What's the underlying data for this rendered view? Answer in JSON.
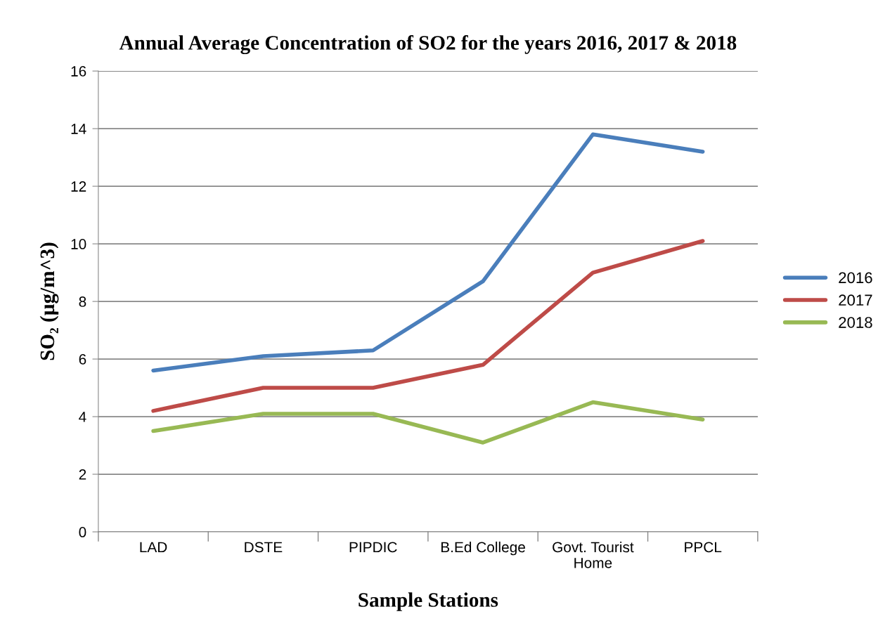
{
  "chart_data": {
    "type": "line",
    "title": "Annual Average Concentration of SO2 for the years 2016, 2017 & 2018",
    "xlabel": "Sample Stations",
    "ylabel": "SO₂ (µg/m^3)",
    "categories": [
      "LAD",
      "DSTE",
      "PIPDIC",
      "B.Ed College",
      "Govt. Tourist\nHome",
      "PPCL"
    ],
    "series": [
      {
        "name": "2016",
        "color": "#4a7ebb",
        "values": [
          5.6,
          6.1,
          6.3,
          8.7,
          13.8,
          13.2
        ]
      },
      {
        "name": "2017",
        "color": "#be4b48",
        "values": [
          4.2,
          5.0,
          5.0,
          5.8,
          9.0,
          10.1
        ]
      },
      {
        "name": "2018",
        "color": "#98b954",
        "values": [
          3.5,
          4.1,
          4.1,
          3.1,
          4.5,
          3.9
        ]
      }
    ],
    "ylim": [
      0,
      16
    ],
    "yticks": [
      0,
      2,
      4,
      6,
      8,
      10,
      12,
      14,
      16
    ],
    "grid": "y",
    "legend": "right",
    "marker": "none",
    "line_style": "solid"
  }
}
